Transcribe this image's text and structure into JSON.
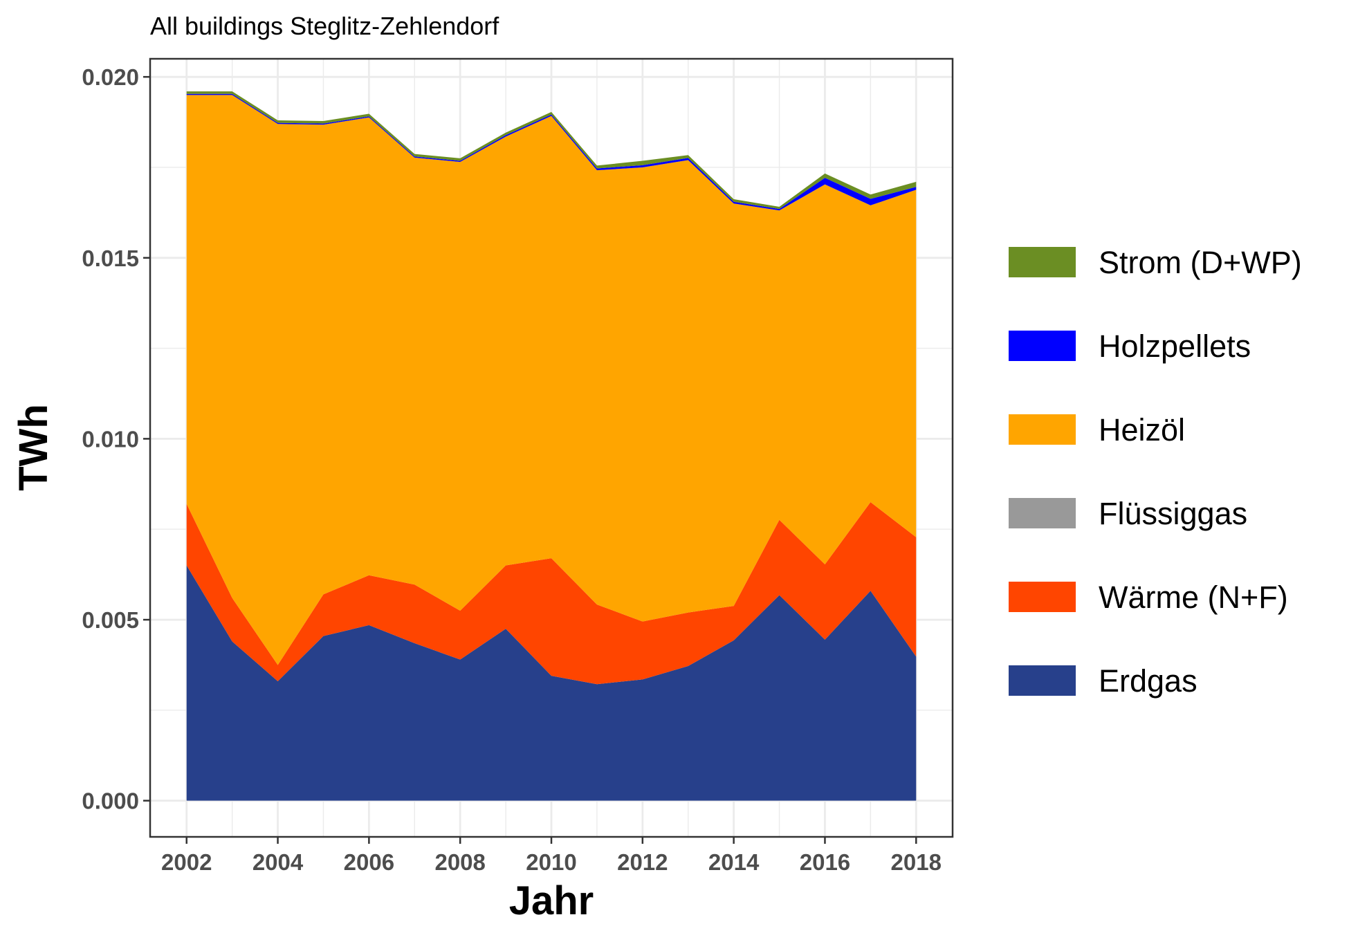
{
  "chart_data": {
    "type": "area",
    "stacked": true,
    "title": "All buildings Steglitz-Zehlendorf",
    "xlabel": "Jahr",
    "ylabel": "TWh",
    "x": [
      2002,
      2003,
      2004,
      2005,
      2006,
      2007,
      2008,
      2009,
      2010,
      2011,
      2012,
      2013,
      2014,
      2015,
      2016,
      2017,
      2018
    ],
    "xlim": [
      2001.2,
      2018.8
    ],
    "ylim": [
      -0.001,
      0.0205
    ],
    "xticks": [
      "2002",
      "2004",
      "2006",
      "2008",
      "2010",
      "2012",
      "2014",
      "2016",
      "2018"
    ],
    "yticks": [
      "0.000",
      "0.005",
      "0.010",
      "0.015",
      "0.020"
    ],
    "grid": true,
    "legend_position": "right",
    "series": [
      {
        "name": "Erdgas",
        "color": "#27408B",
        "values": [
          0.0065,
          0.0044,
          0.0033,
          0.00455,
          0.00485,
          0.00435,
          0.0039,
          0.00475,
          0.00345,
          0.00322,
          0.00335,
          0.00372,
          0.00443,
          0.00568,
          0.00445,
          0.0058,
          0.00398
        ]
      },
      {
        "name": "Wärme (N+F)",
        "color": "#FF4500",
        "values": [
          0.0017,
          0.0012,
          0.00045,
          0.00115,
          0.00138,
          0.00162,
          0.00135,
          0.00175,
          0.00325,
          0.0022,
          0.0016,
          0.00148,
          0.00095,
          0.00208,
          0.00208,
          0.00245,
          0.0033
        ]
      },
      {
        "name": "Flüssiggas",
        "color": "#999999",
        "values": [
          0,
          0,
          0,
          0,
          0,
          0,
          0,
          0,
          0,
          0,
          0,
          0,
          0,
          0,
          0,
          0,
          0
        ]
      },
      {
        "name": "Heizöl",
        "color": "#FFA500",
        "values": [
          0.0113,
          0.0139,
          0.01495,
          0.01298,
          0.01265,
          0.0118,
          0.0124,
          0.01185,
          0.01222,
          0.012,
          0.01255,
          0.0125,
          0.01112,
          0.00855,
          0.0105,
          0.0082,
          0.0096
        ]
      },
      {
        "name": "Holzpellets",
        "color": "#0000FF",
        "values": [
          3e-05,
          3e-05,
          3e-05,
          3e-05,
          3e-05,
          3e-05,
          3e-05,
          4e-05,
          4e-05,
          5e-05,
          6e-05,
          6e-05,
          5e-05,
          4e-05,
          0.00018,
          0.00018,
          8e-05
        ]
      },
      {
        "name": "Strom (D+WP)",
        "color": "#6B8E23",
        "values": [
          7e-05,
          7e-05,
          7e-05,
          7e-05,
          7e-05,
          7e-05,
          7e-05,
          7e-05,
          7e-05,
          8e-05,
          0.00012,
          8e-05,
          7e-05,
          6e-05,
          0.00012,
          0.00012,
          0.00014
        ]
      }
    ],
    "legend_order": [
      "Strom (D+WP)",
      "Holzpellets",
      "Heizöl",
      "Flüssiggas",
      "Wärme (N+F)",
      "Erdgas"
    ]
  }
}
